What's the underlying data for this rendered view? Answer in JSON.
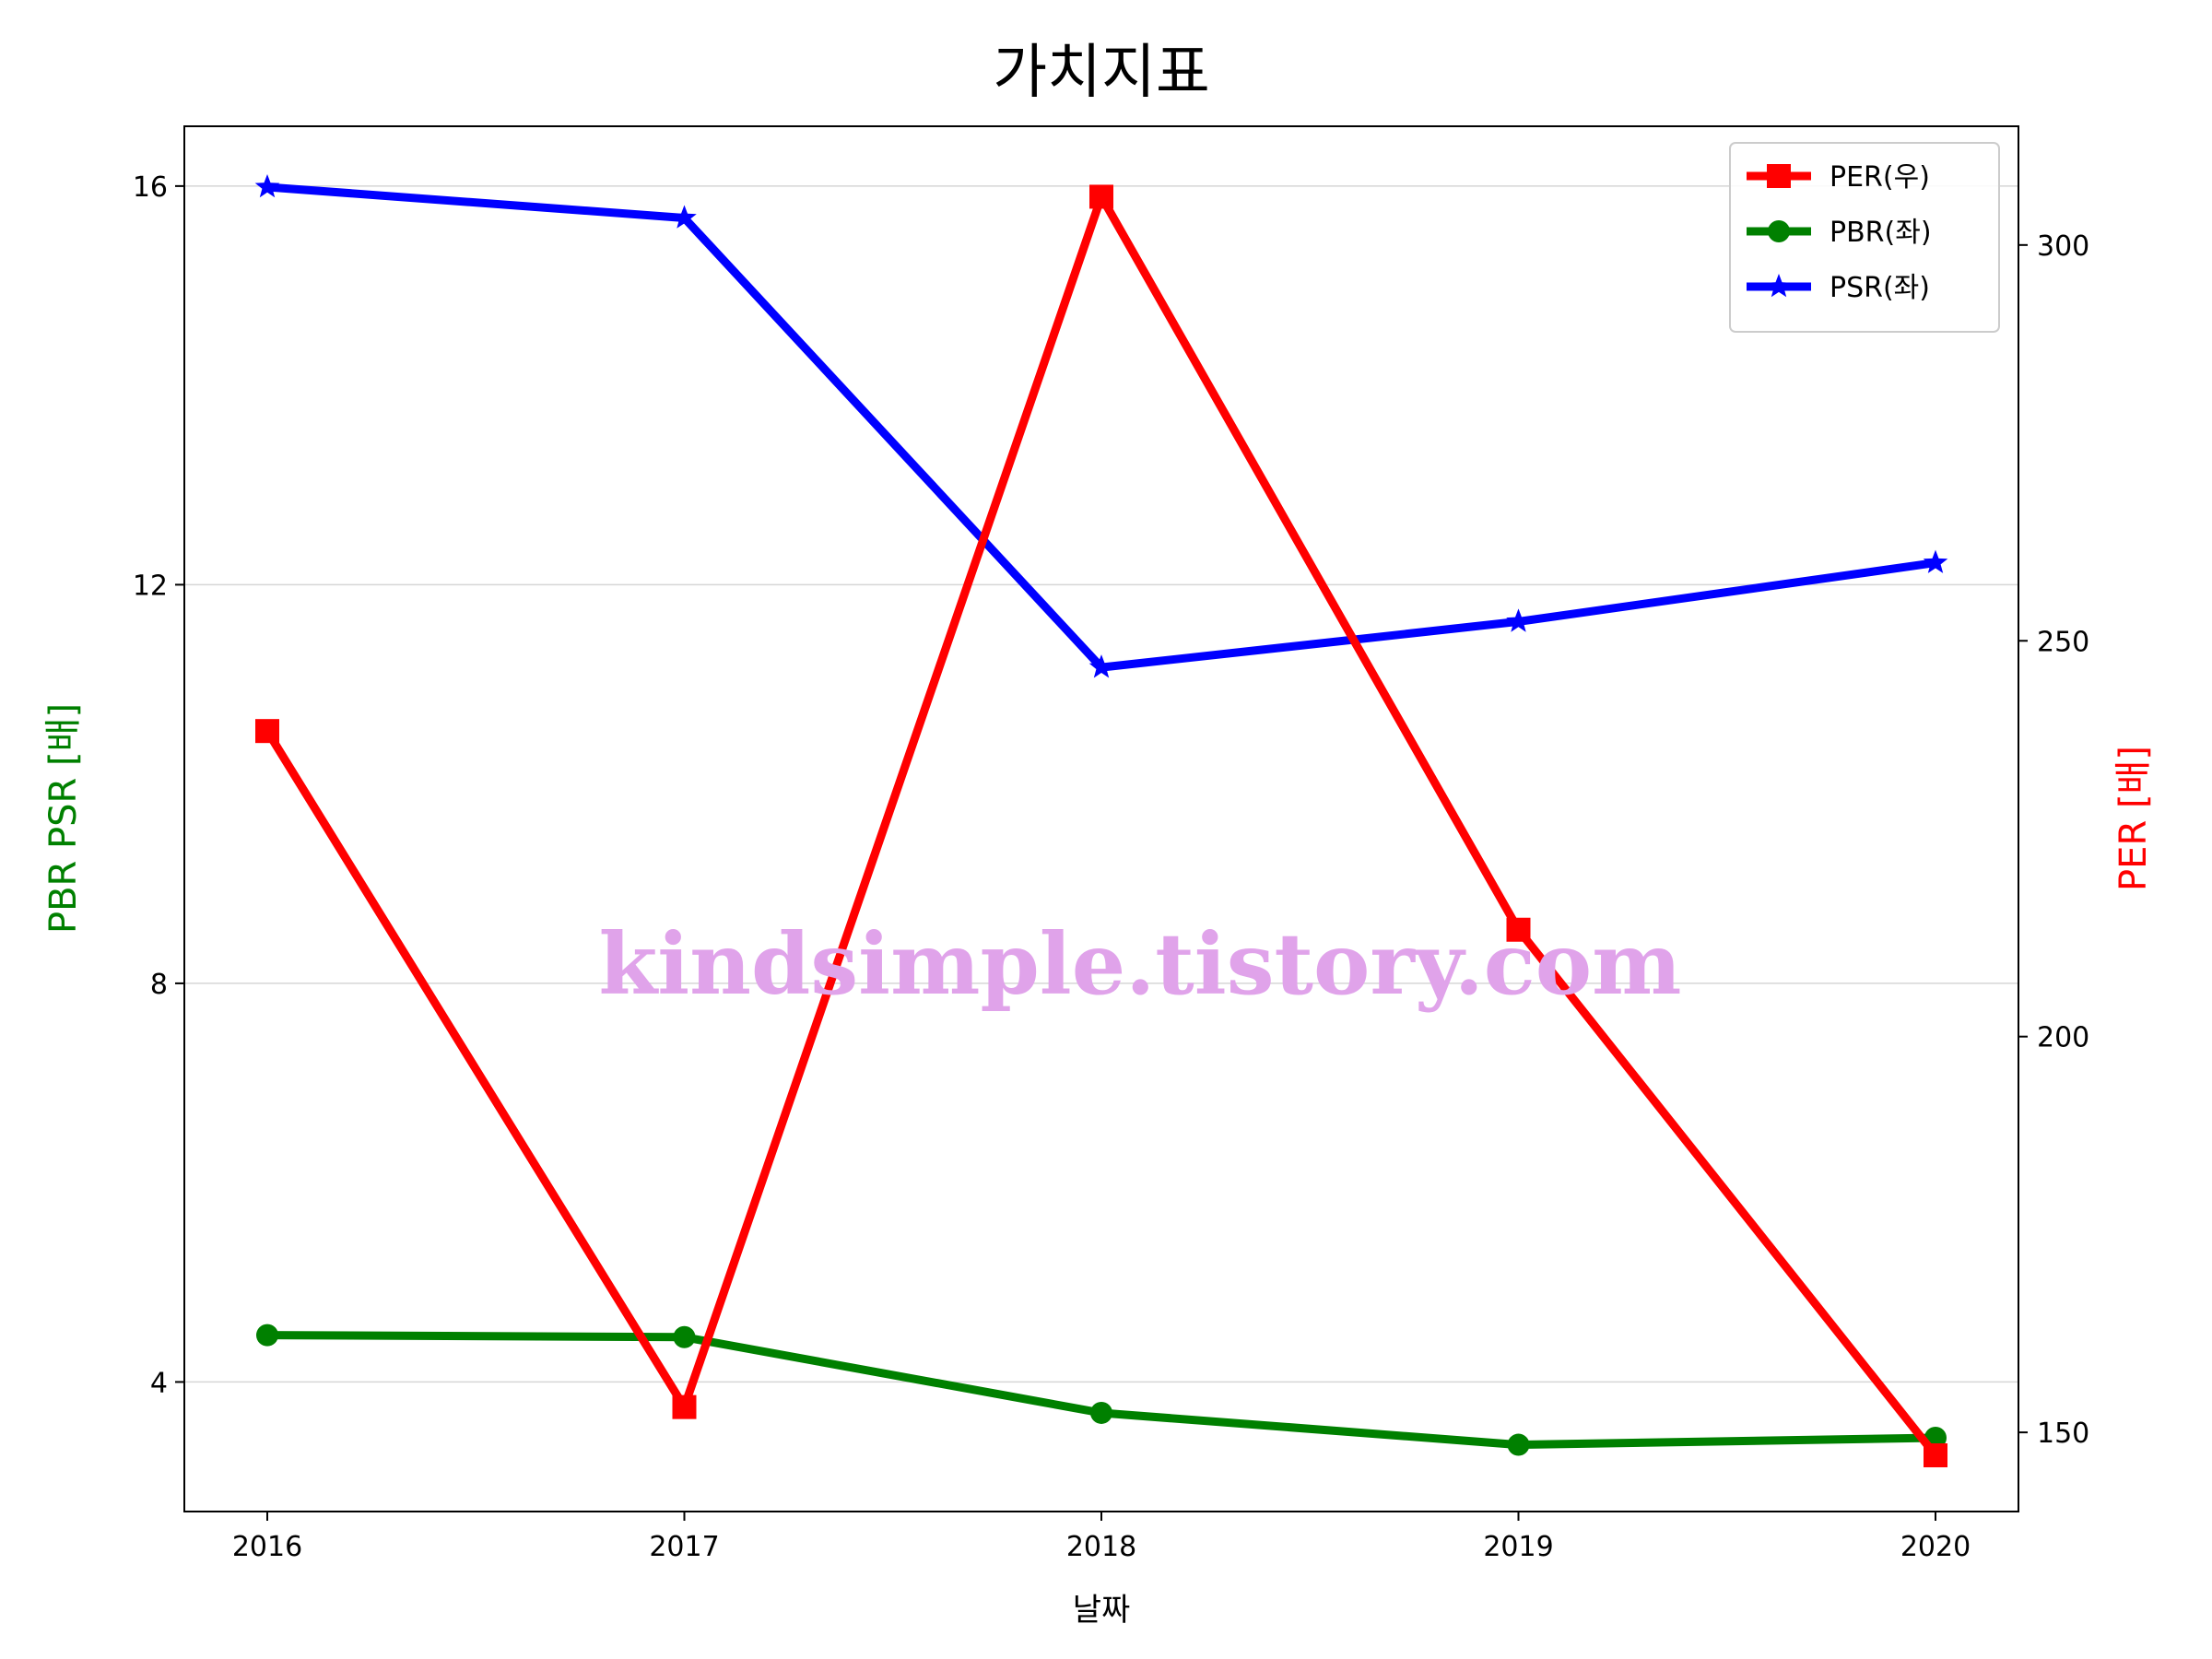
{
  "chart_data": {
    "type": "line",
    "title": "가치지표",
    "xlabel": "날짜",
    "ylabel_left": "PBR PSR [배]",
    "ylabel_right": "PER [배]",
    "categories": [
      "2016",
      "2017",
      "2018",
      "2019",
      "2020"
    ],
    "ylim_left": [
      2.7,
      16.6
    ],
    "yticks_left": [
      4,
      8,
      12,
      16
    ],
    "ylim_right": [
      140,
      315
    ],
    "yticks_right": [
      150,
      200,
      250,
      300
    ],
    "grid": "horizontal",
    "legend_position": "top-right",
    "series": [
      {
        "name": "PER(우)",
        "axis": "right",
        "color": "#ff0000",
        "marker": "square",
        "values": [
          238.6,
          153.2,
          306.1,
          213.5,
          147.1
        ]
      },
      {
        "name": "PBR(좌)",
        "axis": "left",
        "color": "#008000",
        "marker": "circle",
        "values": [
          4.47,
          4.45,
          3.69,
          3.37,
          3.44
        ]
      },
      {
        "name": "PSR(좌)",
        "axis": "left",
        "color": "#0000ff",
        "marker": "star",
        "values": [
          15.99,
          15.68,
          11.17,
          11.63,
          12.22
        ]
      }
    ],
    "watermark": "kindsimple.tistory.com"
  }
}
